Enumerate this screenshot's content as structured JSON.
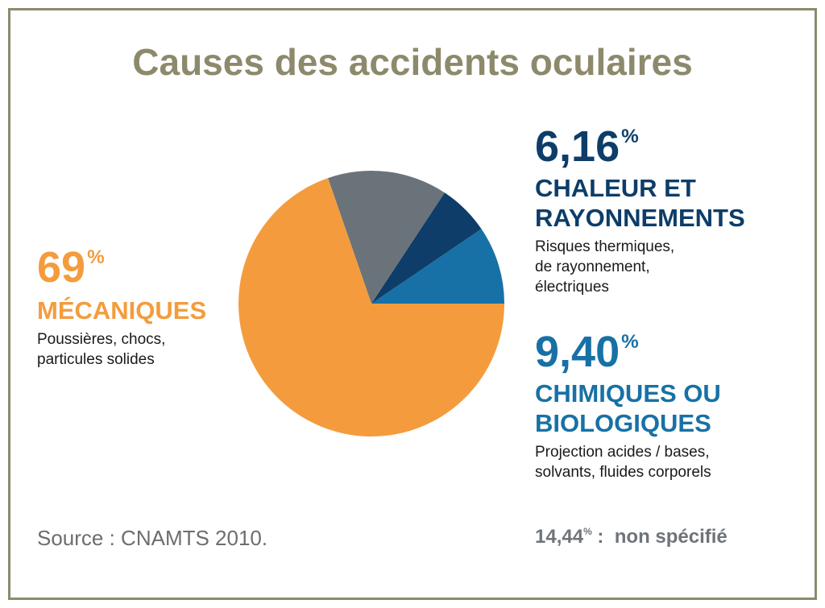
{
  "title": "Causes des accidents oculaires",
  "mecaniques": {
    "value": "69",
    "unit": "%",
    "category": "MÉCANIQUES",
    "desc_lines": [
      "Poussières, chocs,",
      "particules solides"
    ]
  },
  "chaleur": {
    "value": "6,16",
    "unit": "%",
    "category_lines": [
      "CHALEUR ET",
      "RAYONNEMENTS"
    ],
    "desc_lines": [
      "Risques thermiques,",
      "de rayonnement,",
      "électriques"
    ]
  },
  "chimiques": {
    "value": "9,40",
    "unit": "%",
    "category_lines": [
      "CHIMIQUES OU",
      "BIOLOGIQUES"
    ],
    "desc_lines": [
      "Projection acides / bases,",
      "solvants, fluides corporels"
    ]
  },
  "unspecified": {
    "value": "14,44",
    "unit": "%",
    "separator": " :",
    "label": "non spécifié"
  },
  "source": "Source : CNAMTS 2010.",
  "chart_data": {
    "type": "pie",
    "title": "Causes des accidents oculaires",
    "start_angle_deg": 0,
    "direction": "counterclockwise",
    "slices": [
      {
        "label": "Chimiques ou biologiques",
        "value": 9.4,
        "color": "#1771a6"
      },
      {
        "label": "Chaleur et rayonnements",
        "value": 6.16,
        "color": "#0d3d68"
      },
      {
        "label": "Non spécifié",
        "value": 14.44,
        "color": "#6b737a"
      },
      {
        "label": "Mécaniques",
        "value": 69,
        "color": "#f49c3d"
      }
    ]
  }
}
